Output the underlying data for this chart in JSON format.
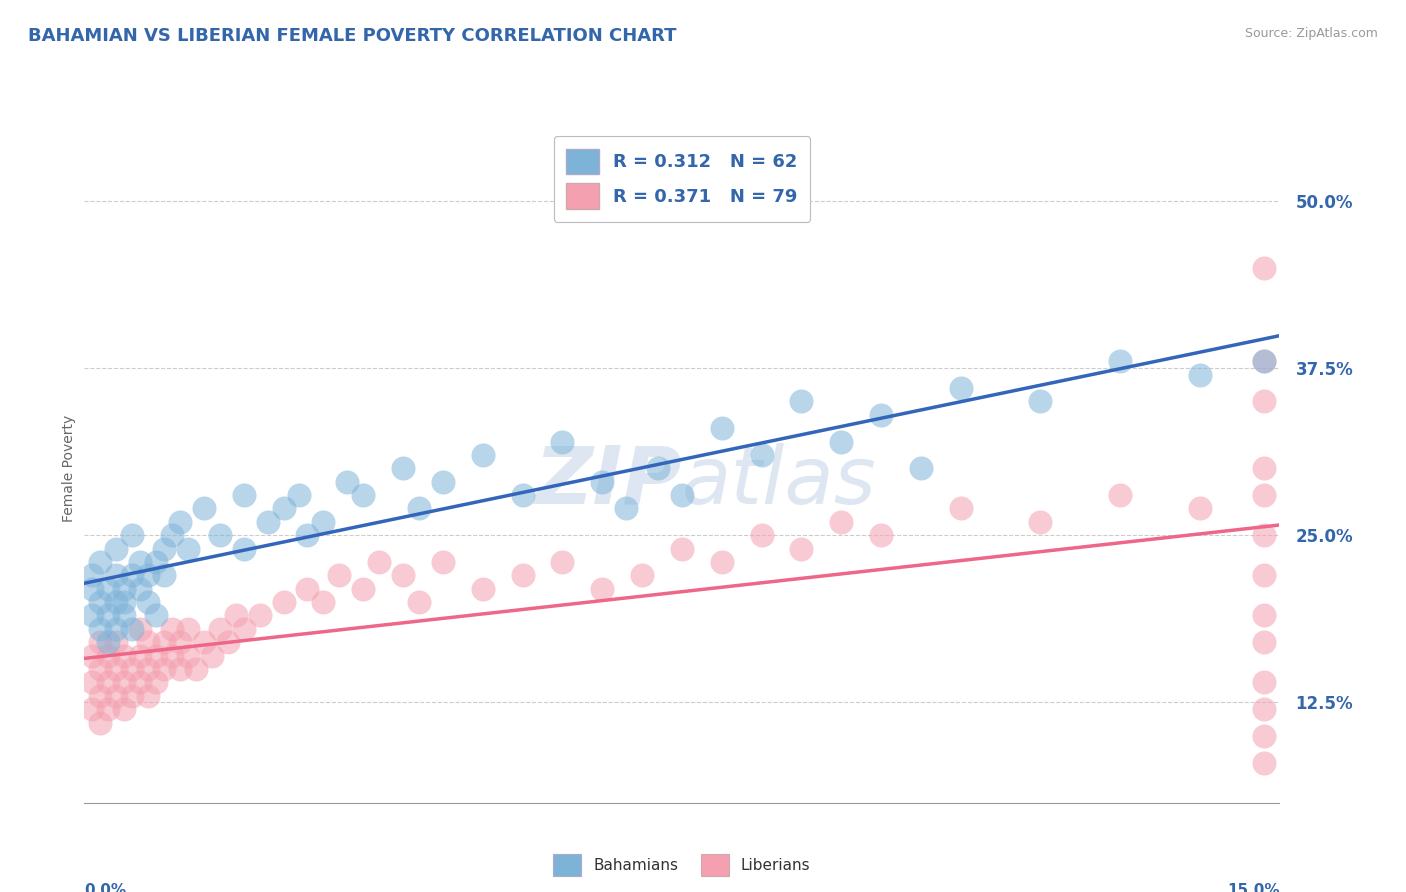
{
  "title": "BAHAMIAN VS LIBERIAN FEMALE POVERTY CORRELATION CHART",
  "source": "Source: ZipAtlas.com",
  "ylabel": "Female Poverty",
  "yticks": [
    "12.5%",
    "25.0%",
    "37.5%",
    "50.0%"
  ],
  "ytick_vals": [
    0.125,
    0.25,
    0.375,
    0.5
  ],
  "xmin": 0.0,
  "xmax": 0.15,
  "ymin": 0.05,
  "ymax": 0.55,
  "bahamian_R": "0.312",
  "bahamian_N": "62",
  "liberian_R": "0.371",
  "liberian_N": "79",
  "color_blue": "#7EB3D8",
  "color_pink": "#F4A0B0",
  "color_title": "#3366AA",
  "line_blue": "#3366BB",
  "line_pink": "#EE6688",
  "watermark_color": "#C8D8E8",
  "legend_label_blue": "Bahamians",
  "legend_label_pink": "Liberians",
  "bah_x": [
    0.001,
    0.001,
    0.001,
    0.002,
    0.002,
    0.002,
    0.003,
    0.003,
    0.003,
    0.004,
    0.004,
    0.004,
    0.004,
    0.005,
    0.005,
    0.005,
    0.006,
    0.006,
    0.006,
    0.007,
    0.007,
    0.008,
    0.008,
    0.009,
    0.009,
    0.01,
    0.01,
    0.011,
    0.012,
    0.013,
    0.015,
    0.017,
    0.02,
    0.02,
    0.023,
    0.025,
    0.027,
    0.028,
    0.03,
    0.033,
    0.035,
    0.04,
    0.042,
    0.045,
    0.05,
    0.055,
    0.06,
    0.065,
    0.068,
    0.072,
    0.075,
    0.08,
    0.085,
    0.09,
    0.095,
    0.1,
    0.105,
    0.11,
    0.12,
    0.13,
    0.14,
    0.148
  ],
  "bah_y": [
    0.21,
    0.19,
    0.22,
    0.2,
    0.18,
    0.23,
    0.19,
    0.21,
    0.17,
    0.22,
    0.2,
    0.18,
    0.24,
    0.19,
    0.21,
    0.2,
    0.22,
    0.18,
    0.25,
    0.21,
    0.23,
    0.22,
    0.2,
    0.23,
    0.19,
    0.24,
    0.22,
    0.25,
    0.26,
    0.24,
    0.27,
    0.25,
    0.28,
    0.24,
    0.26,
    0.27,
    0.28,
    0.25,
    0.26,
    0.29,
    0.28,
    0.3,
    0.27,
    0.29,
    0.31,
    0.28,
    0.32,
    0.29,
    0.27,
    0.3,
    0.28,
    0.33,
    0.31,
    0.35,
    0.32,
    0.34,
    0.3,
    0.36,
    0.35,
    0.38,
    0.37,
    0.38
  ],
  "lib_x": [
    0.001,
    0.001,
    0.001,
    0.002,
    0.002,
    0.002,
    0.002,
    0.003,
    0.003,
    0.003,
    0.004,
    0.004,
    0.004,
    0.005,
    0.005,
    0.005,
    0.006,
    0.006,
    0.007,
    0.007,
    0.007,
    0.008,
    0.008,
    0.008,
    0.009,
    0.009,
    0.01,
    0.01,
    0.011,
    0.011,
    0.012,
    0.012,
    0.013,
    0.013,
    0.014,
    0.015,
    0.016,
    0.017,
    0.018,
    0.019,
    0.02,
    0.022,
    0.025,
    0.028,
    0.03,
    0.032,
    0.035,
    0.037,
    0.04,
    0.042,
    0.045,
    0.05,
    0.055,
    0.06,
    0.065,
    0.07,
    0.075,
    0.08,
    0.085,
    0.09,
    0.095,
    0.1,
    0.11,
    0.12,
    0.13,
    0.14,
    0.148,
    0.148,
    0.148,
    0.148,
    0.148,
    0.148,
    0.148,
    0.148,
    0.148,
    0.148,
    0.148,
    0.148,
    0.148
  ],
  "lib_y": [
    0.14,
    0.16,
    0.12,
    0.13,
    0.15,
    0.17,
    0.11,
    0.14,
    0.16,
    0.12,
    0.15,
    0.13,
    0.17,
    0.14,
    0.16,
    0.12,
    0.15,
    0.13,
    0.14,
    0.16,
    0.18,
    0.15,
    0.13,
    0.17,
    0.16,
    0.14,
    0.17,
    0.15,
    0.16,
    0.18,
    0.15,
    0.17,
    0.16,
    0.18,
    0.15,
    0.17,
    0.16,
    0.18,
    0.17,
    0.19,
    0.18,
    0.19,
    0.2,
    0.21,
    0.2,
    0.22,
    0.21,
    0.23,
    0.22,
    0.2,
    0.23,
    0.21,
    0.22,
    0.23,
    0.21,
    0.22,
    0.24,
    0.23,
    0.25,
    0.24,
    0.26,
    0.25,
    0.27,
    0.26,
    0.28,
    0.27,
    0.45,
    0.1,
    0.08,
    0.17,
    0.22,
    0.14,
    0.3,
    0.25,
    0.12,
    0.38,
    0.19,
    0.28,
    0.35
  ]
}
